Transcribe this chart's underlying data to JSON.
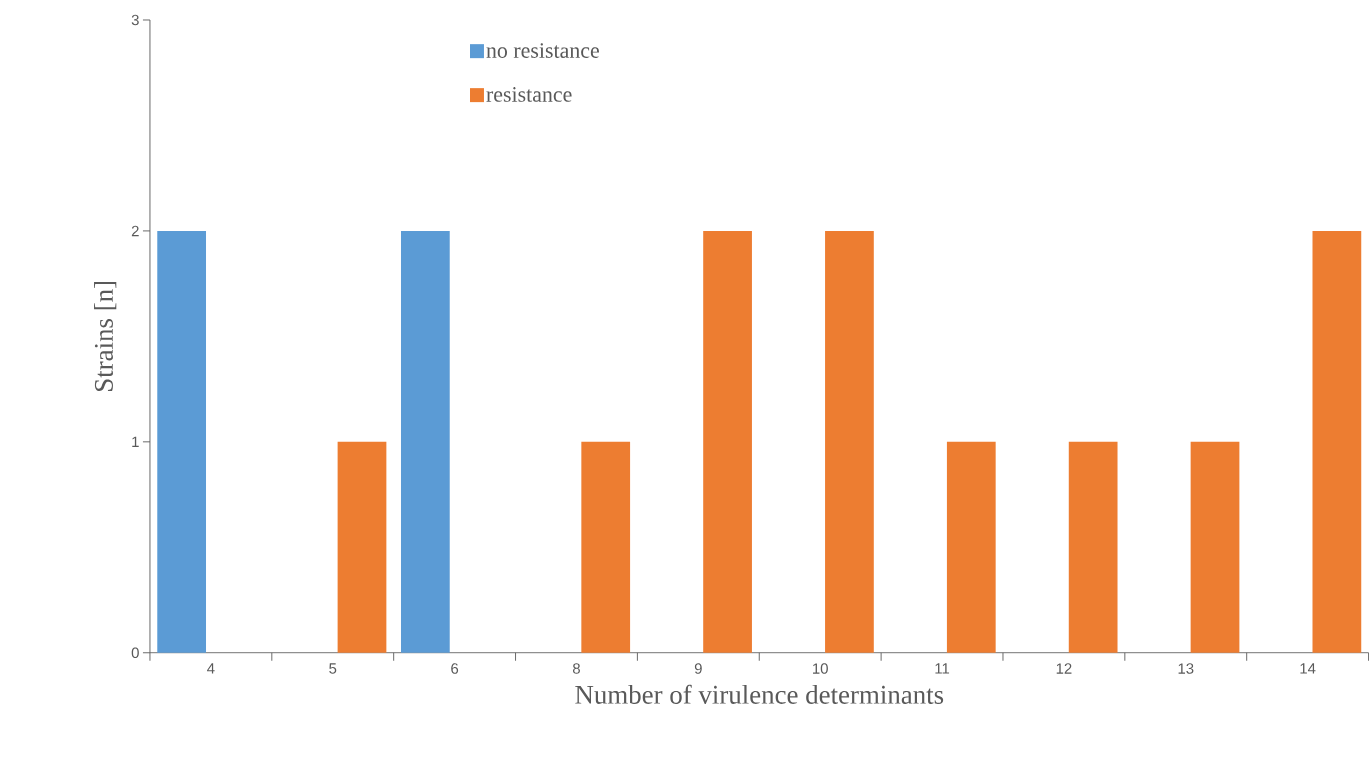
{
  "chart_data": {
    "type": "bar",
    "xlabel": "Number of virulence determinants",
    "ylabel": "Strains [n]",
    "categories": [
      "4",
      "5",
      "6",
      "8",
      "9",
      "10",
      "11",
      "12",
      "13",
      "14"
    ],
    "series": [
      {
        "name": "no resistance",
        "color": "#5b9bd5",
        "values": [
          2,
          0,
          2,
          0,
          0,
          0,
          0,
          0,
          0,
          0
        ]
      },
      {
        "name": "resistance",
        "color": "#ed7d31",
        "values": [
          0,
          1,
          0,
          1,
          2,
          2,
          1,
          1,
          1,
          2
        ]
      }
    ],
    "ylim": [
      0,
      3
    ],
    "yticks": [
      0,
      1,
      2,
      3
    ],
    "grid": false,
    "legend": "top"
  }
}
